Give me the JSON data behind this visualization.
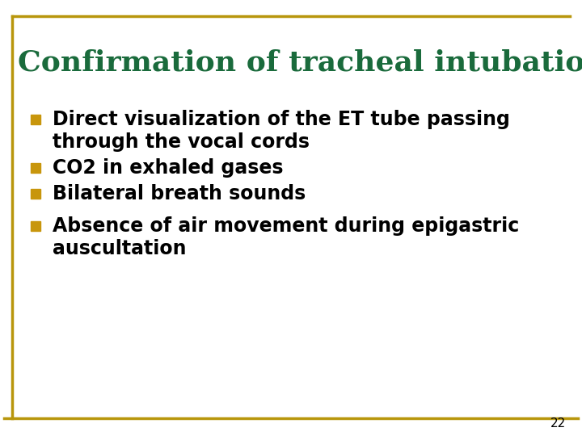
{
  "title": "Confirmation of tracheal intubation:",
  "title_color": "#1a6b3c",
  "title_fontsize": 26,
  "background_color": "#ffffff",
  "border_color": "#b8960c",
  "bullet_color": "#c8960c",
  "text_color": "#000000",
  "bullet_items": [
    [
      "Direct visualization of the ET tube passing",
      "through the vocal cords"
    ],
    [
      "CO2 in exhaled gases"
    ],
    [
      "Bilateral breath sounds"
    ],
    [
      "Absence of air movement during epigastric",
      "auscultation"
    ]
  ],
  "text_fontsize": 17,
  "page_number": "22",
  "page_number_fontsize": 11
}
